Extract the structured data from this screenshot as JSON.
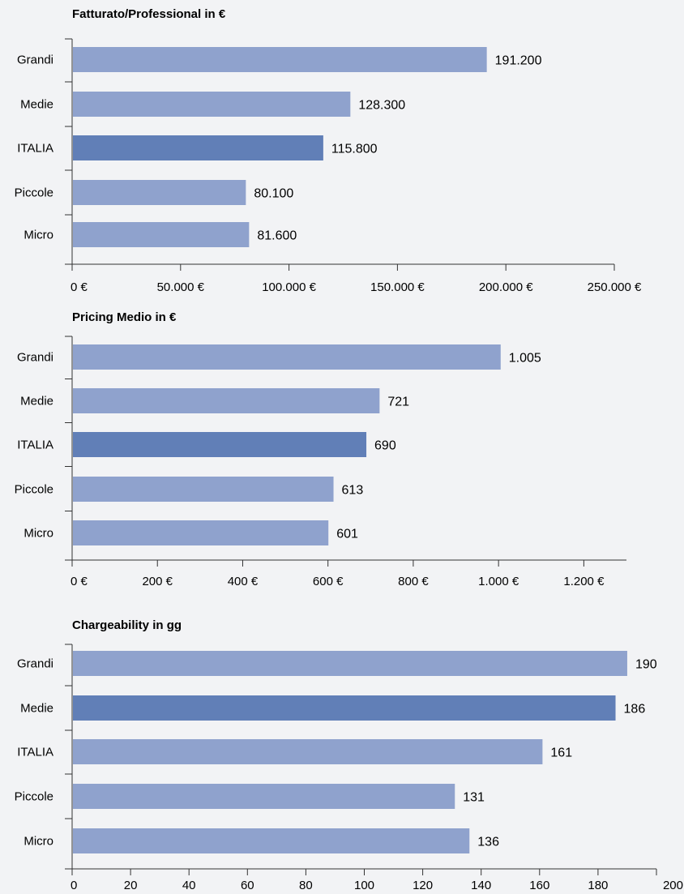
{
  "chart_data": [
    {
      "type": "bar",
      "orientation": "horizontal",
      "title": "Fatturato/Professional in €",
      "categories": [
        "Grandi",
        "Medie",
        "ITALIA",
        "Piccole",
        "Micro"
      ],
      "values": [
        191200,
        128300,
        115800,
        80100,
        81600
      ],
      "value_labels": [
        "191.200",
        "128.300",
        "115.800",
        "80.100",
        "81.600"
      ],
      "highlight_category": "ITALIA",
      "xlim": [
        0,
        250000
      ],
      "xticks": [
        0,
        50000,
        100000,
        150000,
        200000,
        250000
      ],
      "xtick_labels": [
        "0 €",
        "50.000 €",
        "100.000 €",
        "150.000 €",
        "200.000 €",
        "250.000 €"
      ],
      "grid": false,
      "colors": {
        "bar": "#8fa2cd",
        "highlight": "#617fb7"
      }
    },
    {
      "type": "bar",
      "orientation": "horizontal",
      "title": "Pricing Medio in €",
      "categories": [
        "Grandi",
        "Medie",
        "ITALIA",
        "Piccole",
        "Micro"
      ],
      "values": [
        1005,
        721,
        690,
        613,
        601
      ],
      "value_labels": [
        "1.005",
        "721",
        "690",
        "613",
        "601"
      ],
      "highlight_category": "ITALIA",
      "xlim": [
        0,
        1300
      ],
      "xticks": [
        0,
        200,
        400,
        600,
        800,
        1000,
        1200
      ],
      "xtick_labels": [
        "0 €",
        "200 €",
        "400 €",
        "600 €",
        "800 €",
        "1.000 €",
        "1.200 €"
      ],
      "grid": false,
      "colors": {
        "bar": "#8fa2cd",
        "highlight": "#617fb7"
      }
    },
    {
      "type": "bar",
      "orientation": "horizontal",
      "title": "Chargeability in gg",
      "categories": [
        "Grandi",
        "Medie",
        "ITALIA",
        "Piccole",
        "Micro"
      ],
      "values": [
        190,
        186,
        161,
        131,
        136
      ],
      "value_labels": [
        "190",
        "186",
        "161",
        "131",
        "136"
      ],
      "highlight_category": "Medie",
      "xlim": [
        0,
        200
      ],
      "xticks": [
        0,
        20,
        40,
        60,
        80,
        100,
        120,
        140,
        160,
        180,
        200
      ],
      "xtick_labels": [
        "0",
        "20",
        "40",
        "60",
        "80",
        "100",
        "120",
        "140",
        "160",
        "180",
        "200"
      ],
      "grid": false,
      "colors": {
        "bar": "#8fa2cd",
        "highlight": "#617fb7"
      }
    }
  ]
}
